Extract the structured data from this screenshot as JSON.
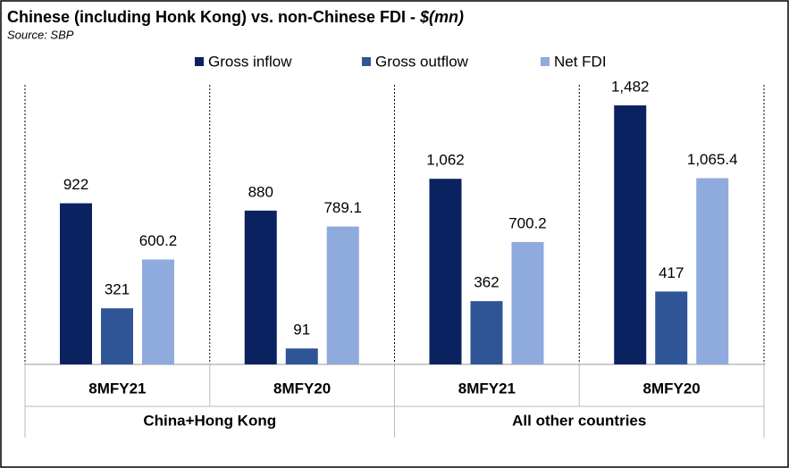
{
  "chart_data": {
    "type": "bar",
    "title": "Chinese (including  Honk Kong) vs. non-Chinese  FDI -",
    "title_unit": "$(mn)",
    "subtitle": "Source: SBP",
    "categories": [
      "8MFY21",
      "8MFY20",
      "8MFY21",
      "8MFY20"
    ],
    "groups": [
      "China+Hong Kong",
      "All other countries"
    ],
    "series": [
      {
        "name": "Gross inflow",
        "color": "#0a2260",
        "values": [
          922,
          880,
          1062,
          1482
        ],
        "value_labels": [
          "922",
          "880",
          "1,062",
          "1,482"
        ]
      },
      {
        "name": "Gross outflow",
        "color": "#2f5597",
        "values": [
          321,
          91,
          362,
          417
        ],
        "value_labels": [
          "321",
          "91",
          "362",
          "417"
        ]
      },
      {
        "name": "Net FDI",
        "color": "#8faadc",
        "values": [
          600.2,
          789.1,
          700.2,
          1065.4
        ],
        "value_labels": [
          "600.2",
          "789.1",
          "700.2",
          "1,065.4"
        ]
      }
    ],
    "legend": "top"
  }
}
